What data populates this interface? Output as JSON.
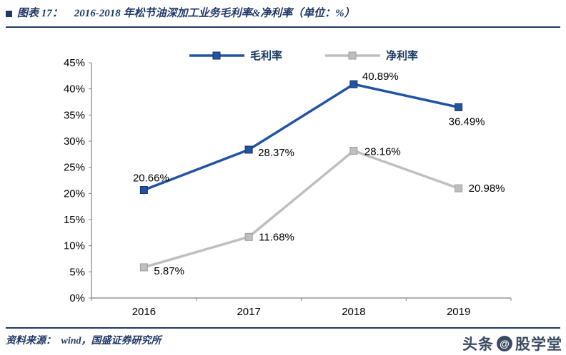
{
  "header": {
    "label": "图表 17：",
    "title": "2016-2018 年松节油深加工业务毛利率&净利率（单位：%）"
  },
  "footer": {
    "source_label": "资料来源：",
    "source_text": "wind，国盛证券研究所"
  },
  "watermark": {
    "prefix": "头条",
    "at": "@",
    "suffix": "股学堂"
  },
  "chart_data": {
    "type": "line",
    "title": "2016-2018 年松节油深加工业务毛利率&净利率（单位：%）",
    "categories": [
      "2016",
      "2017",
      "2018",
      "2019"
    ],
    "series": [
      {
        "name": "毛利率",
        "color": "#2353A4",
        "marker_stroke": "#17365D",
        "values": [
          20.66,
          28.37,
          40.89,
          36.49
        ],
        "labels": [
          "20.66%",
          "28.37%",
          "40.89%",
          "36.49%"
        ]
      },
      {
        "name": "净利率",
        "color": "#BFBFBF",
        "marker_stroke": "#9E9E9E",
        "values": [
          5.87,
          11.68,
          28.16,
          20.98
        ],
        "labels": [
          "5.87%",
          "11.68%",
          "28.16%",
          "20.98%"
        ]
      }
    ],
    "ylim": [
      0,
      45
    ],
    "ytick_step": 5,
    "ytick_labels": [
      "0%",
      "5%",
      "10%",
      "15%",
      "20%",
      "25%",
      "30%",
      "35%",
      "40%",
      "45%"
    ],
    "grid": false,
    "legend_position": "top-center",
    "legend_text_color": "#17365D",
    "axis_color": "#808080",
    "label_color": "#000000"
  }
}
